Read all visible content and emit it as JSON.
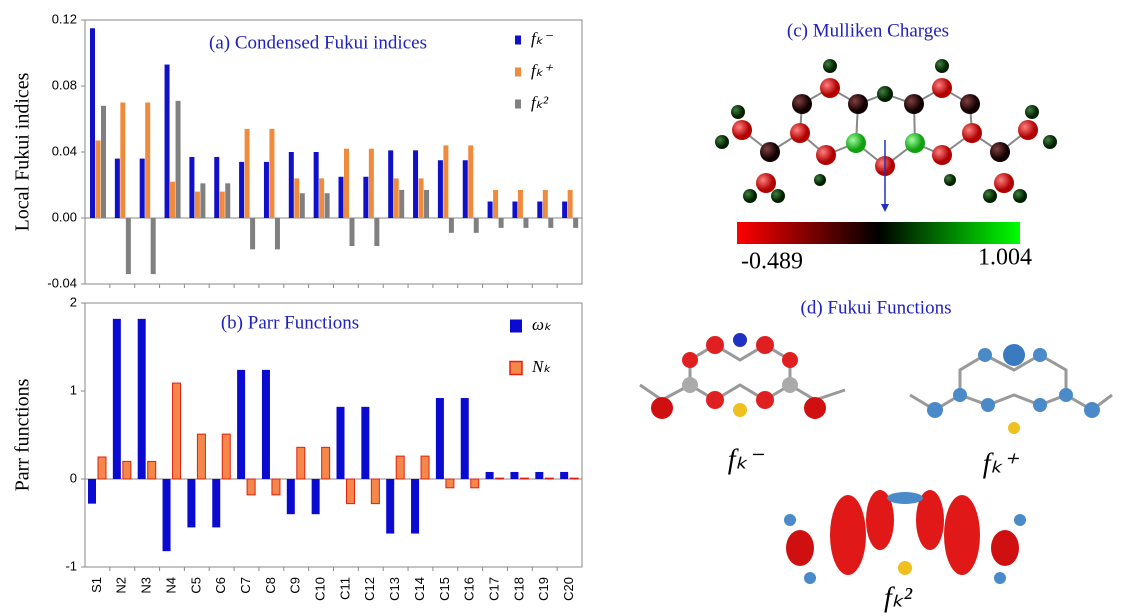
{
  "chart_data": [
    {
      "type": "bar",
      "title": "(a) Condensed Fukui indices",
      "ylabel": "Local Fukui indices",
      "ylim": [
        -0.04,
        0.12
      ],
      "yticks": [
        -0.04,
        {
          "value": 0,
          "label": "0.00"
        },
        0.04,
        0.08,
        0.12
      ],
      "legend": "upper right",
      "series": [
        {
          "name": "fₖ⁻",
          "color": "#1010c8",
          "values": [
            0.115,
            0.036,
            0.036,
            0.093,
            0.037,
            0.037,
            0.034,
            0.034,
            0.04,
            0.04,
            0.025,
            0.025,
            0.041,
            0.041,
            0.035,
            0.035,
            0.01,
            0.01,
            0.01,
            0.01
          ]
        },
        {
          "name": "fₖ⁺",
          "color": "#f08a3c",
          "values": [
            0.047,
            0.07,
            0.07,
            0.022,
            0.016,
            0.016,
            0.054,
            0.054,
            0.024,
            0.024,
            0.042,
            0.042,
            0.024,
            0.024,
            0.044,
            0.044,
            0.017,
            0.017,
            0.017,
            0.017
          ]
        },
        {
          "name": "fₖ²",
          "color": "#808080",
          "values": [
            0.068,
            -0.034,
            -0.034,
            0.071,
            0.021,
            0.021,
            -0.019,
            -0.019,
            0.015,
            0.015,
            -0.017,
            -0.017,
            0.017,
            0.017,
            -0.009,
            -0.009,
            -0.006,
            -0.006,
            -0.006,
            -0.006
          ]
        }
      ]
    },
    {
      "type": "bar",
      "title": "(b) Parr Functions",
      "ylabel": "Parr functions",
      "categories": [
        "S1",
        "N2",
        "N3",
        "N4",
        "C5",
        "C6",
        "C7",
        "C8",
        "C9",
        "C10",
        "C11",
        "C12",
        "C13",
        "C14",
        "C15",
        "C16",
        "C17",
        "C18",
        "C19",
        "C20"
      ],
      "ylim": [
        -1,
        2
      ],
      "yticks": [
        -1,
        0,
        1,
        2
      ],
      "legend": "upper right",
      "series": [
        {
          "name": "ωₖ",
          "color": "#0a0ad0",
          "values": [
            -0.28,
            1.82,
            1.82,
            -0.82,
            -0.55,
            -0.55,
            1.24,
            1.24,
            -0.4,
            -0.4,
            0.82,
            0.82,
            -0.62,
            -0.62,
            0.92,
            0.92,
            0.08,
            0.08,
            0.08,
            0.08
          ]
        },
        {
          "name": "Nₖ",
          "color": "#f4884a",
          "edgecolor": "#e02010",
          "values": [
            0.25,
            0.2,
            0.2,
            1.09,
            0.51,
            0.51,
            -0.18,
            -0.18,
            0.36,
            0.36,
            -0.28,
            -0.28,
            0.26,
            0.26,
            -0.1,
            -0.1,
            0.01,
            0.01,
            0.01,
            0.01
          ]
        }
      ]
    }
  ],
  "panels": {
    "mulliken_title": "(c) Mulliken Charges",
    "colorbar_min": "-0.489",
    "colorbar_max": "1.004",
    "fukui_title": "(d) Fukui Functions",
    "fukui_minus": "fₖ⁻",
    "fukui_plus": "fₖ⁺",
    "fukui_dual": "fₖ²"
  }
}
